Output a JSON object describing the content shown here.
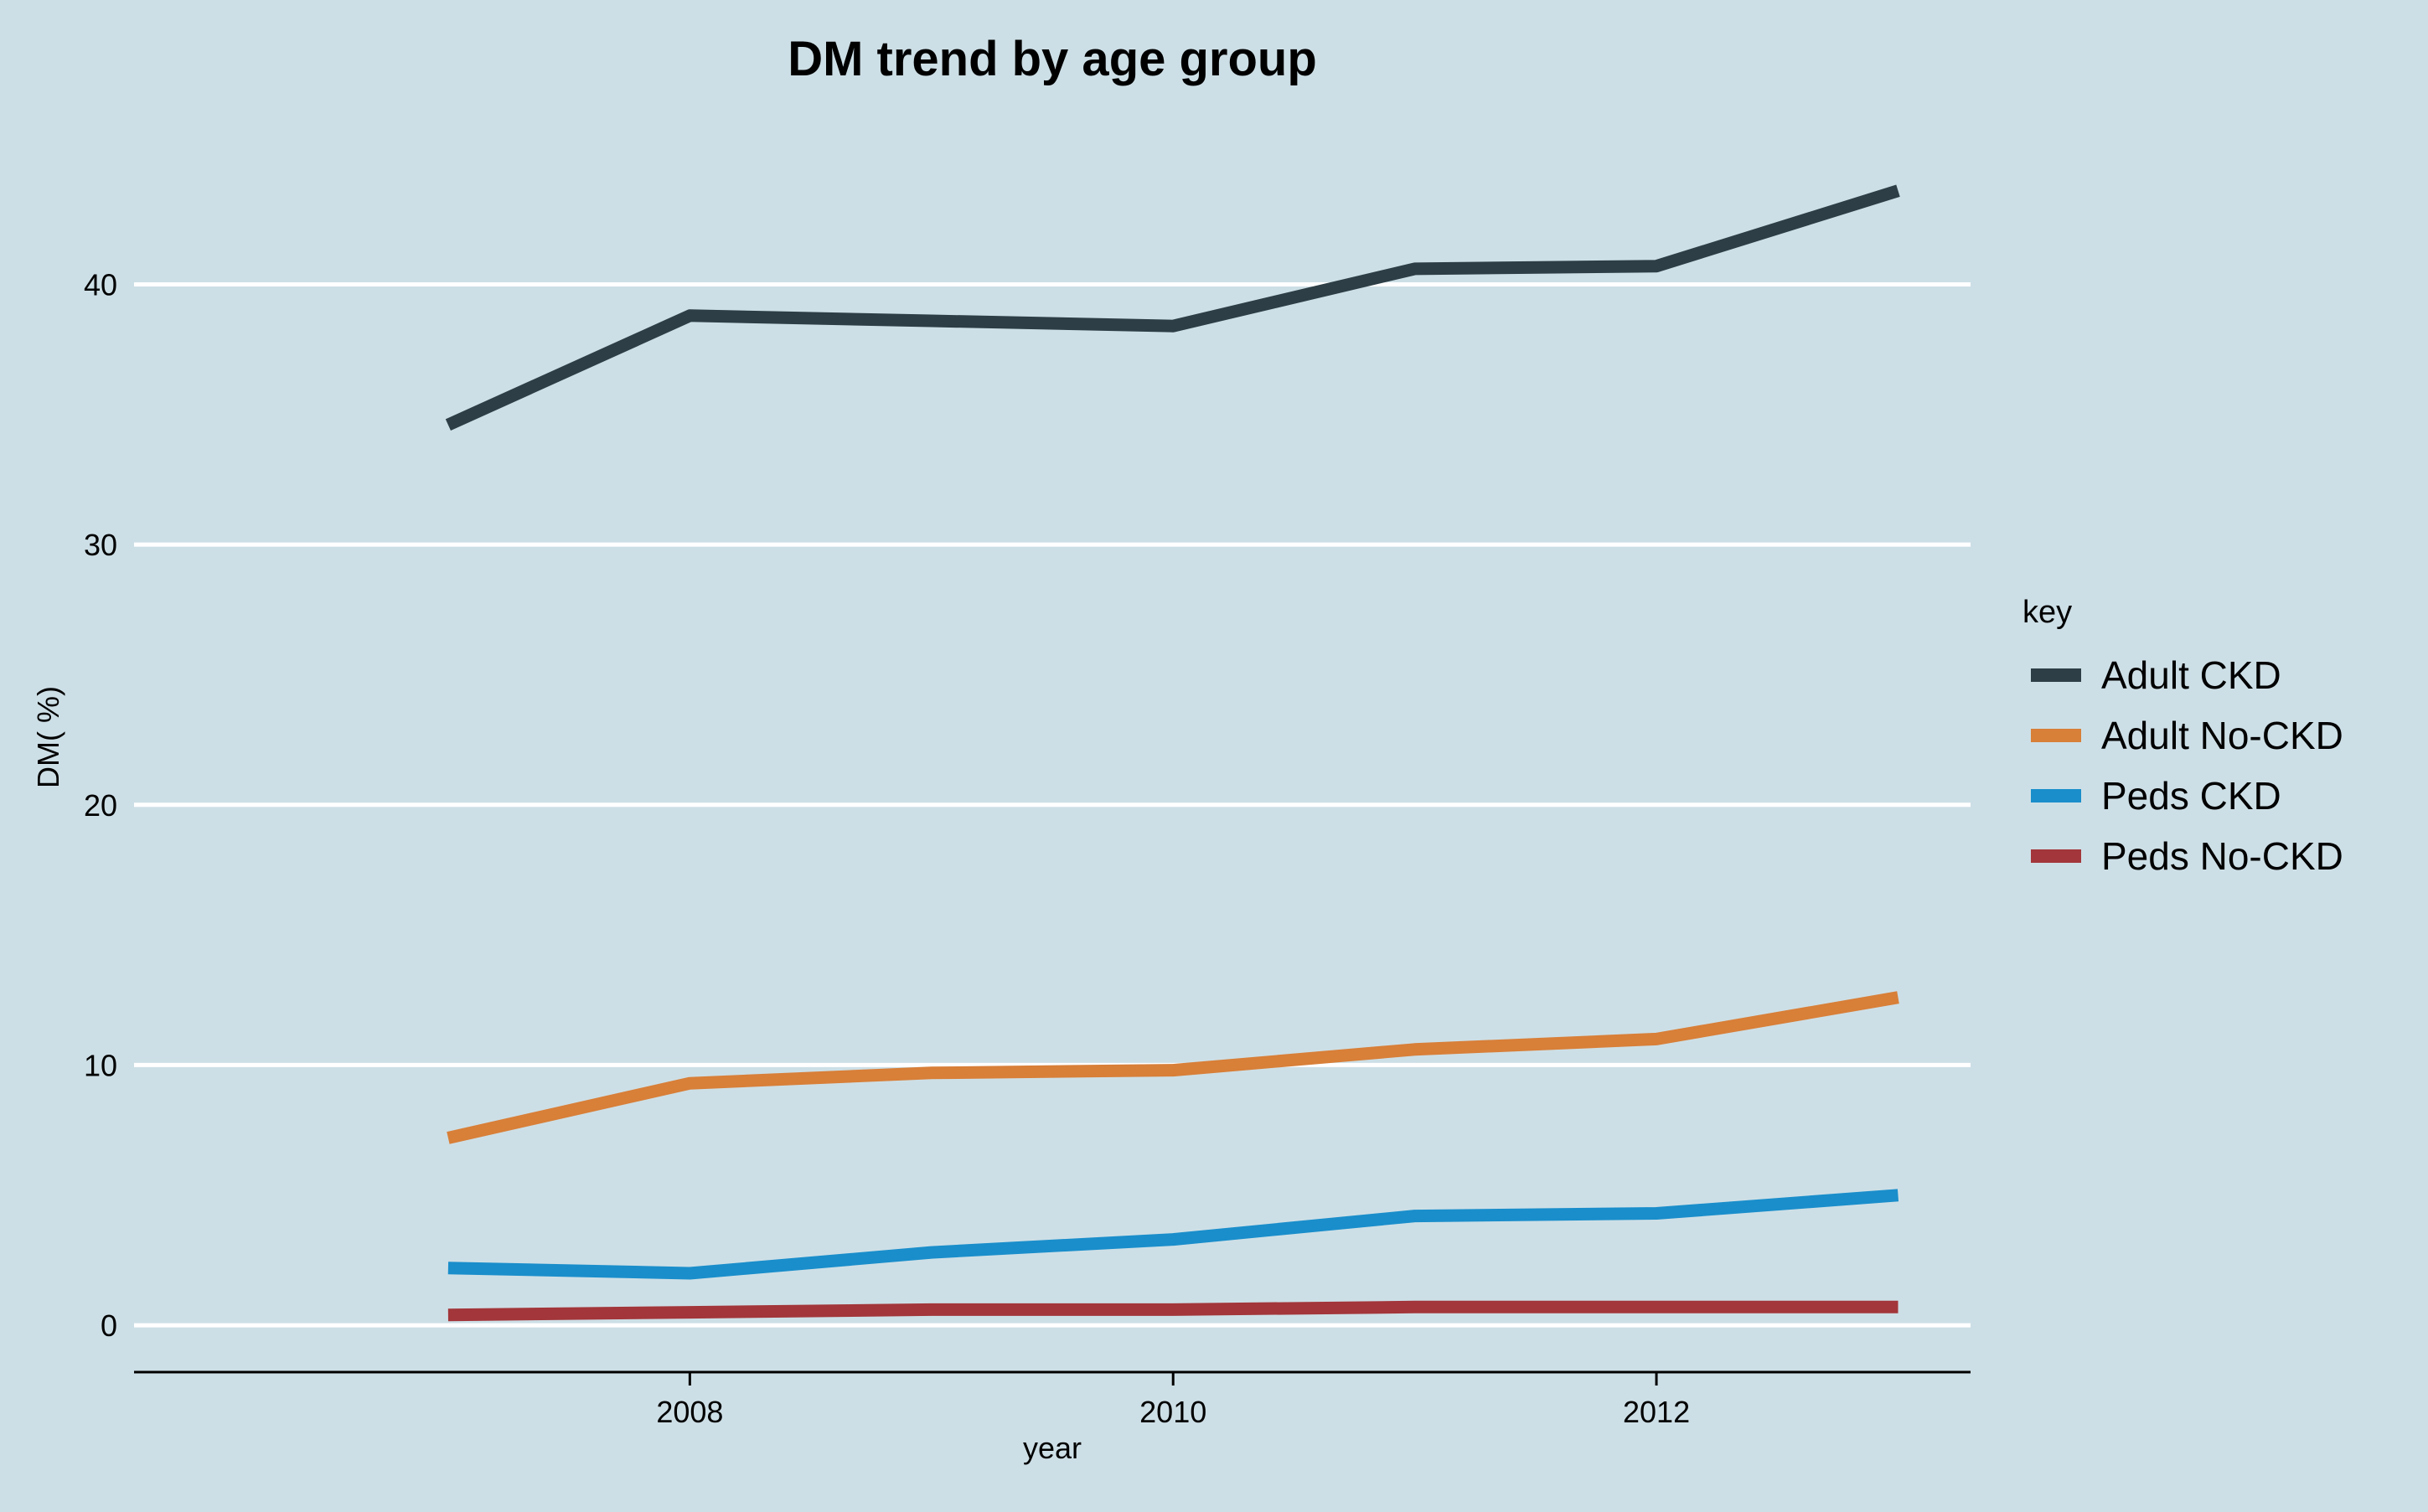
{
  "chart_data": {
    "type": "line",
    "title": "DM trend by age group",
    "xlabel": "year",
    "ylabel": "DM( %)",
    "x": [
      2007,
      2008,
      2009,
      2010,
      2011,
      2012,
      2013
    ],
    "xlim": [
      2005.7,
      2013.3
    ],
    "ylim": [
      -1.8,
      46.1
    ],
    "x_ticks": [
      2008,
      2010,
      2012
    ],
    "y_ticks": [
      0,
      10,
      20,
      30,
      40
    ],
    "grid": "horizontal major",
    "legend": {
      "title": "key",
      "placement": "right"
    },
    "series": [
      {
        "name": "Adult CKD",
        "color": "#2d3e46",
        "values": [
          34.6,
          38.8,
          38.6,
          38.4,
          40.6,
          40.7,
          43.6
        ]
      },
      {
        "name": "Adult No-CKD",
        "color": "#d87f38",
        "values": [
          7.2,
          9.3,
          9.7,
          9.8,
          10.6,
          11.0,
          12.6
        ]
      },
      {
        "name": "Peds CKD",
        "color": "#1a8ecb",
        "values": [
          2.2,
          2.0,
          2.8,
          3.3,
          4.2,
          4.3,
          5.0
        ]
      },
      {
        "name": "Peds No-CKD",
        "color": "#a2363a",
        "values": [
          0.4,
          0.5,
          0.6,
          0.6,
          0.7,
          0.7,
          0.7
        ]
      }
    ]
  }
}
